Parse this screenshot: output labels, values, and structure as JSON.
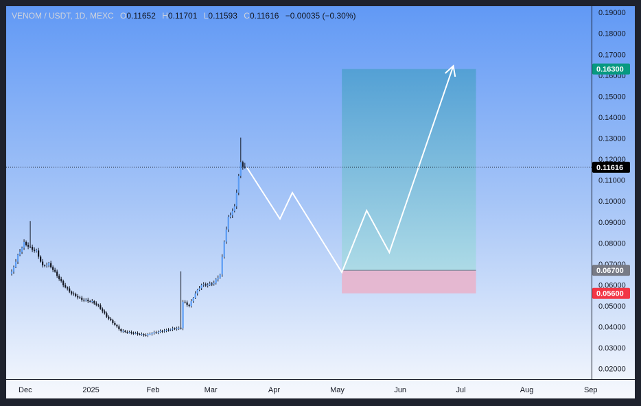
{
  "header": {
    "symbol": "VENOM / USDT, 1D, MEXC",
    "o_label": "O",
    "o_value": "0.11652",
    "h_label": "H",
    "h_value": "0.11701",
    "l_label": "L",
    "l_value": "0.11593",
    "c_label": "C",
    "c_value": "0.11616",
    "change": "−0.00035 (−0.30%)"
  },
  "colors": {
    "up": "#5b9cf4",
    "down": "#131722",
    "target_fill": "#4a9fd3",
    "stop_fill": "#e8b4cc",
    "tp_badge": "#089981",
    "stop_badge": "#f23645",
    "last_badge": "#000000",
    "entry_badge": "#787b86",
    "projection": "#ffffff"
  },
  "chart_data": {
    "type": "candlestick",
    "title": "VENOM / USDT, 1D, MEXC",
    "ylim": [
      0.015,
      0.193
    ],
    "y_ticks": [
      "0.19000",
      "0.18000",
      "0.17000",
      "0.16000",
      "0.15000",
      "0.14000",
      "0.13000",
      "0.12000",
      "0.11000",
      "0.10000",
      "0.09000",
      "0.08000",
      "0.07000",
      "0.06000",
      "0.05000",
      "0.04000",
      "0.03000",
      "0.02000"
    ],
    "x_ticks": [
      "Dec",
      "2025",
      "Feb",
      "Mar",
      "Apr",
      "May",
      "Jun",
      "Jul",
      "Aug",
      "Sep"
    ],
    "x_tick_dates": [
      "2024-12-01",
      "2025-01-01",
      "2025-02-01",
      "2025-03-01",
      "2025-04-01",
      "2025-05-01",
      "2025-06-01",
      "2025-07-01",
      "2025-08-01",
      "2025-09-01"
    ],
    "candle_keypoints": [
      [
        "2024-11-29",
        0.066
      ],
      [
        "2024-12-02",
        0.074
      ],
      [
        "2024-12-05",
        0.08
      ],
      [
        "2024-12-09",
        0.077
      ],
      [
        "2024-12-11",
        0.076
      ],
      [
        "2024-12-14",
        0.069
      ],
      [
        "2024-12-17",
        0.07
      ],
      [
        "2024-12-20",
        0.066
      ],
      [
        "2024-12-24",
        0.06
      ],
      [
        "2024-12-28",
        0.056
      ],
      [
        "2025-01-02",
        0.053
      ],
      [
        "2025-01-07",
        0.052
      ],
      [
        "2025-01-10",
        0.05
      ],
      [
        "2025-01-14",
        0.045
      ],
      [
        "2025-01-17",
        0.042
      ],
      [
        "2025-01-21",
        0.038
      ],
      [
        "2025-01-27",
        0.037
      ],
      [
        "2025-02-02",
        0.036
      ],
      [
        "2025-02-05",
        0.037
      ],
      [
        "2025-02-10",
        0.038
      ],
      [
        "2025-02-15",
        0.039
      ],
      [
        "2025-02-19",
        0.0395
      ],
      [
        "2025-02-20",
        0.052
      ],
      [
        "2025-02-23",
        0.05
      ],
      [
        "2025-02-26",
        0.056
      ],
      [
        "2025-03-01",
        0.06
      ],
      [
        "2025-03-04",
        0.06
      ],
      [
        "2025-03-07",
        0.061
      ],
      [
        "2025-03-10",
        0.065
      ],
      [
        "2025-03-12",
        0.081
      ],
      [
        "2025-03-14",
        0.092
      ],
      [
        "2025-03-17",
        0.097
      ],
      [
        "2025-03-19",
        0.112
      ],
      [
        "2025-03-20",
        0.118
      ],
      [
        "2025-03-22",
        0.116
      ]
    ],
    "spike_wicks": [
      {
        "date": "2024-12-08",
        "high": 0.0905
      },
      {
        "date": "2025-02-19",
        "high": 0.0665
      },
      {
        "date": "2025-03-20",
        "high": 0.1303
      }
    ],
    "last_price": 0.11616,
    "position": {
      "start": "2025-05-08",
      "end": "2025-07-12",
      "take_profit": 0.163,
      "entry": 0.067,
      "stop": 0.056
    },
    "projection_path": [
      [
        "2025-03-23",
        0.116
      ],
      [
        "2025-04-08",
        0.0915
      ],
      [
        "2025-04-14",
        0.104
      ],
      [
        "2025-05-08",
        0.066
      ],
      [
        "2025-05-20",
        0.0955
      ],
      [
        "2025-05-31",
        0.0755
      ],
      [
        "2025-07-01",
        0.1645
      ]
    ],
    "price_labels": {
      "take_profit": "0.16300",
      "last": "0.11616",
      "entry": "0.06700",
      "stop": "0.05600"
    }
  }
}
